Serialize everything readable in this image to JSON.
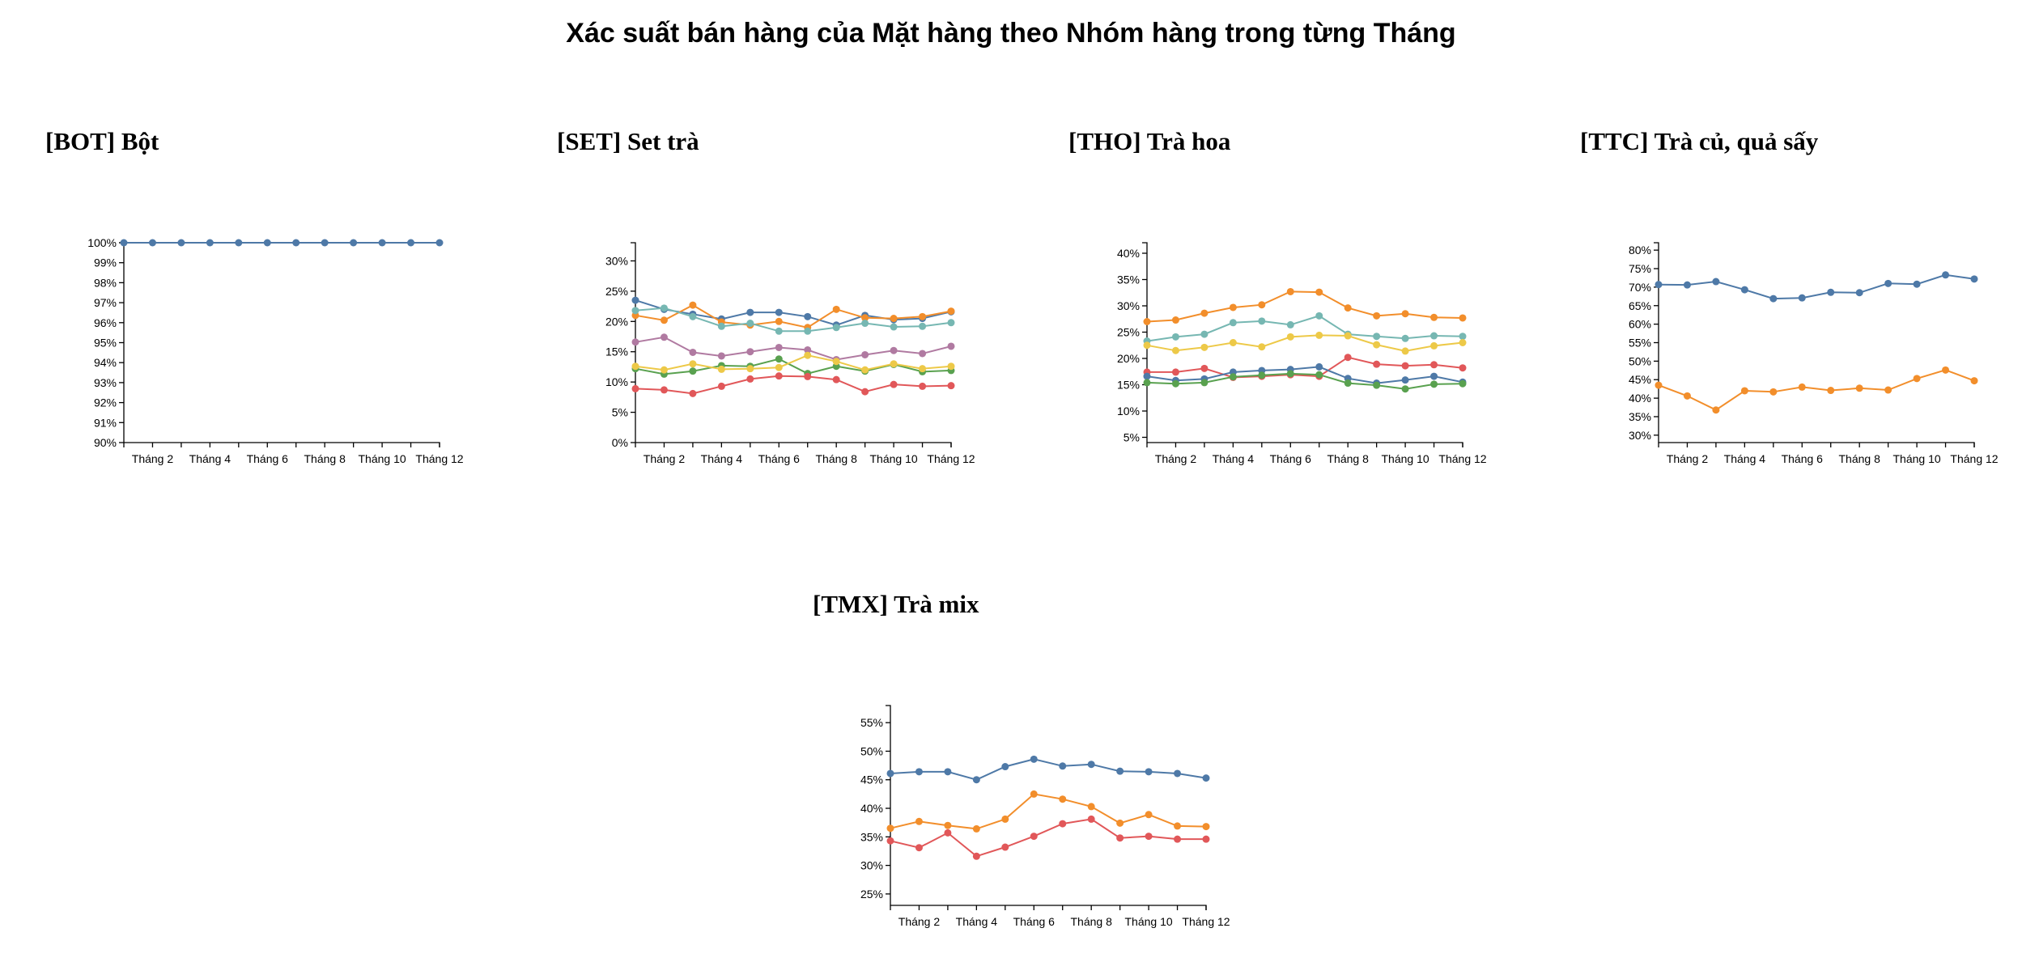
{
  "title": "Xác suất bán hàng của Mặt hàng theo Nhóm hàng trong từng Tháng",
  "colors": [
    "#4e79a7",
    "#f28e2b",
    "#e15759",
    "#76b7b2",
    "#59a14f",
    "#edc948",
    "#b07aa1"
  ],
  "chart_data": [
    {
      "type": "line",
      "title": "[BOT] Bột",
      "x_tick_labels": [
        "Tháng 2",
        "Tháng 4",
        "Tháng 6",
        "Tháng 8",
        "Tháng 10",
        "Tháng 12"
      ],
      "x": [
        1,
        2,
        3,
        4,
        5,
        6,
        7,
        8,
        9,
        10,
        11,
        12
      ],
      "ylim": [
        90,
        100
      ],
      "y_ticks": [
        90,
        91,
        92,
        93,
        94,
        95,
        96,
        97,
        98,
        99,
        100
      ],
      "y_unit": "%",
      "series": [
        {
          "color": "#4e79a7",
          "values": [
            100,
            100,
            100,
            100,
            100,
            100,
            100,
            100,
            100,
            100,
            100,
            100
          ]
        }
      ]
    },
    {
      "type": "line",
      "title": "[SET] Set trà",
      "x_tick_labels": [
        "Tháng 2",
        "Tháng 4",
        "Tháng 6",
        "Tháng 8",
        "Tháng 10",
        "Tháng 12"
      ],
      "x": [
        1,
        2,
        3,
        4,
        5,
        6,
        7,
        8,
        9,
        10,
        11,
        12
      ],
      "ylim": [
        0,
        33
      ],
      "y_ticks": [
        0,
        5,
        10,
        15,
        20,
        25,
        30
      ],
      "y_unit": "%",
      "series": [
        {
          "color": "#4e79a7",
          "values": [
            23.5,
            22.0,
            21.2,
            20.4,
            21.5,
            21.5,
            20.8,
            19.4,
            21.0,
            20.3,
            20.5,
            21.6
          ]
        },
        {
          "color": "#f28e2b",
          "values": [
            21.0,
            20.2,
            22.7,
            19.9,
            19.4,
            20.0,
            19.0,
            22.0,
            20.6,
            20.5,
            20.8,
            21.7
          ]
        },
        {
          "color": "#76b7b2",
          "values": [
            21.8,
            22.2,
            20.8,
            19.2,
            19.7,
            18.4,
            18.4,
            19.0,
            19.7,
            19.1,
            19.2,
            19.8
          ]
        },
        {
          "color": "#b07aa1",
          "values": [
            16.6,
            17.4,
            14.9,
            14.3,
            15.0,
            15.7,
            15.3,
            13.7,
            14.5,
            15.2,
            14.7,
            15.9
          ]
        },
        {
          "color": "#59a14f",
          "values": [
            12.2,
            11.3,
            11.8,
            12.7,
            12.6,
            13.8,
            11.4,
            12.6,
            11.8,
            12.9,
            11.7,
            11.9
          ]
        },
        {
          "color": "#edc948",
          "values": [
            12.6,
            12.0,
            13.0,
            12.1,
            12.2,
            12.4,
            14.4,
            13.4,
            12.0,
            13.0,
            12.2,
            12.6
          ]
        },
        {
          "color": "#e15759",
          "values": [
            8.9,
            8.7,
            8.1,
            9.3,
            10.5,
            11.0,
            10.9,
            10.4,
            8.4,
            9.6,
            9.3,
            9.4
          ]
        }
      ]
    },
    {
      "type": "line",
      "title": "[THO] Trà hoa",
      "x_tick_labels": [
        "Tháng 2",
        "Tháng 4",
        "Tháng 6",
        "Tháng 8",
        "Tháng 10",
        "Tháng 12"
      ],
      "x": [
        1,
        2,
        3,
        4,
        5,
        6,
        7,
        8,
        9,
        10,
        11,
        12
      ],
      "ylim": [
        4,
        42
      ],
      "y_ticks": [
        5,
        10,
        15,
        20,
        25,
        30,
        35,
        40
      ],
      "y_unit": "%",
      "series": [
        {
          "color": "#f28e2b",
          "values": [
            27.0,
            27.3,
            28.6,
            29.7,
            30.2,
            32.7,
            32.6,
            29.6,
            28.1,
            28.5,
            27.8,
            27.7
          ]
        },
        {
          "color": "#76b7b2",
          "values": [
            23.3,
            24.1,
            24.6,
            26.8,
            27.1,
            26.4,
            28.1,
            24.6,
            24.2,
            23.8,
            24.3,
            24.2
          ]
        },
        {
          "color": "#edc948",
          "values": [
            22.5,
            21.5,
            22.1,
            23.0,
            22.2,
            24.1,
            24.4,
            24.3,
            22.6,
            21.4,
            22.4,
            23.0
          ]
        },
        {
          "color": "#e15759",
          "values": [
            17.4,
            17.4,
            18.1,
            16.4,
            16.6,
            16.9,
            16.6,
            20.2,
            18.9,
            18.6,
            18.8,
            18.2
          ]
        },
        {
          "color": "#4e79a7",
          "values": [
            16.6,
            15.8,
            16.1,
            17.4,
            17.7,
            17.9,
            18.4,
            16.2,
            15.3,
            15.9,
            16.6,
            15.5
          ]
        },
        {
          "color": "#59a14f",
          "values": [
            15.4,
            15.2,
            15.4,
            16.5,
            16.8,
            17.1,
            16.9,
            15.3,
            14.9,
            14.2,
            15.1,
            15.2
          ]
        }
      ]
    },
    {
      "type": "line",
      "title": "[TTC] Trà củ, quả sấy",
      "x_tick_labels": [
        "Tháng 2",
        "Tháng 4",
        "Tháng 6",
        "Tháng 8",
        "Tháng 10",
        "Tháng 12"
      ],
      "x": [
        1,
        2,
        3,
        4,
        5,
        6,
        7,
        8,
        9,
        10,
        11,
        12
      ],
      "ylim": [
        28,
        82
      ],
      "y_ticks": [
        30,
        35,
        40,
        45,
        50,
        55,
        60,
        65,
        70,
        75,
        80
      ],
      "y_unit": "%",
      "series": [
        {
          "color": "#4e79a7",
          "values": [
            70.7,
            70.6,
            71.5,
            69.3,
            66.9,
            67.1,
            68.6,
            68.5,
            71.0,
            70.8,
            73.3,
            72.2
          ]
        },
        {
          "color": "#f28e2b",
          "values": [
            43.5,
            40.6,
            36.8,
            42.0,
            41.7,
            43.0,
            42.1,
            42.7,
            42.2,
            45.3,
            47.6,
            44.7
          ]
        }
      ]
    },
    {
      "type": "line",
      "title": "[TMX] Trà mix",
      "x_tick_labels": [
        "Tháng 2",
        "Tháng 4",
        "Tháng 6",
        "Tháng 8",
        "Tháng 10",
        "Tháng 12"
      ],
      "x": [
        1,
        2,
        3,
        4,
        5,
        6,
        7,
        8,
        9,
        10,
        11,
        12
      ],
      "ylim": [
        23,
        58
      ],
      "y_ticks": [
        25,
        30,
        35,
        40,
        45,
        50,
        55
      ],
      "y_unit": "%",
      "series": [
        {
          "color": "#4e79a7",
          "values": [
            46.1,
            46.4,
            46.4,
            45.0,
            47.3,
            48.6,
            47.4,
            47.7,
            46.5,
            46.4,
            46.1,
            45.3
          ]
        },
        {
          "color": "#f28e2b",
          "values": [
            36.5,
            37.7,
            37.0,
            36.4,
            38.1,
            42.5,
            41.6,
            40.3,
            37.4,
            38.9,
            36.9,
            36.8
          ]
        },
        {
          "color": "#e15759",
          "values": [
            34.3,
            33.1,
            35.7,
            31.6,
            33.2,
            35.1,
            37.3,
            38.1,
            34.8,
            35.1,
            34.6,
            34.6
          ]
        }
      ]
    }
  ]
}
